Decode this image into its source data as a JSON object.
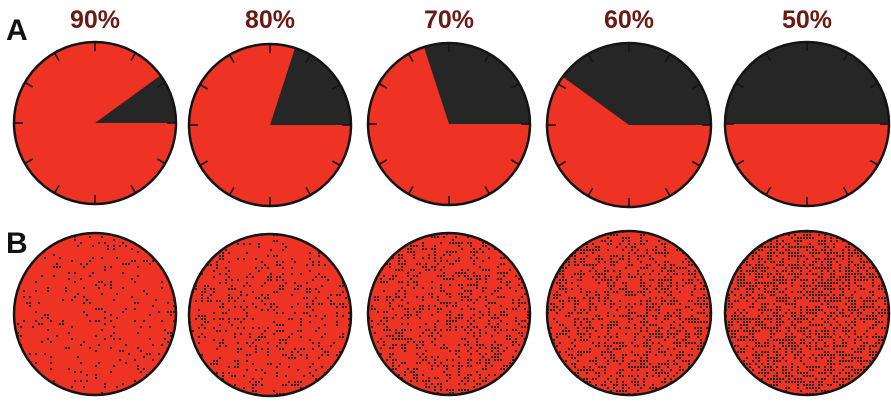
{
  "panels": {
    "a_label": "A",
    "b_label": "B"
  },
  "percentages": [
    {
      "label": "90%",
      "red_fraction": 0.9
    },
    {
      "label": "80%",
      "red_fraction": 0.8
    },
    {
      "label": "70%",
      "red_fraction": 0.7
    },
    {
      "label": "60%",
      "red_fraction": 0.6
    },
    {
      "label": "50%",
      "red_fraction": 0.5
    }
  ],
  "colors": {
    "red": "#ee3223",
    "dark": "#262626",
    "outline": "#141414",
    "label": "#6a1a12"
  }
}
